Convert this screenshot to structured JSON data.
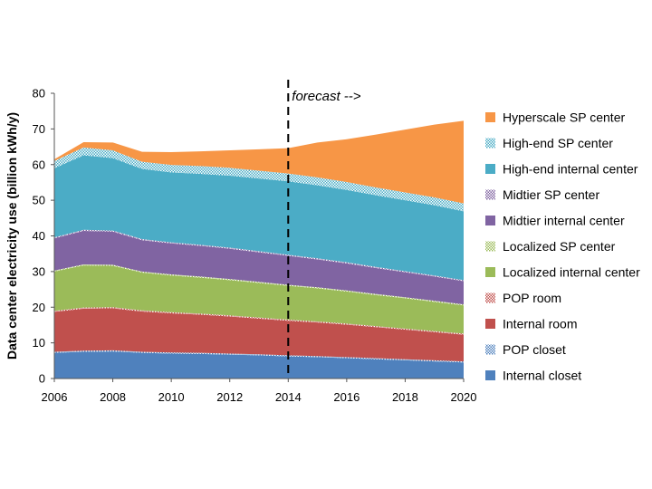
{
  "chart_data": {
    "type": "area",
    "stacked": true,
    "title": "",
    "xlabel": "",
    "ylabel": "Data center electricity use (billion kWh/y)",
    "xlim": [
      2006,
      2020
    ],
    "ylim": [
      0,
      80
    ],
    "xticks": [
      "2006",
      "2008",
      "2010",
      "2012",
      "2014",
      "2016",
      "2018",
      "2020"
    ],
    "yticks": [
      "0",
      "10",
      "20",
      "30",
      "40",
      "50",
      "60",
      "70",
      "80"
    ],
    "grid": false,
    "legend_position": "right",
    "annotation": {
      "text": "forecast -->",
      "x": 2014,
      "style": "dashed-vertical-line"
    },
    "x": [
      2006,
      2007,
      2008,
      2009,
      2010,
      2011,
      2012,
      2013,
      2014,
      2015,
      2016,
      2017,
      2018,
      2019,
      2020
    ],
    "series": [
      {
        "name": "Internal closet",
        "color": "#4F81BD",
        "pattern": "solid",
        "values": [
          7.2,
          7.5,
          7.6,
          7.2,
          7.0,
          6.9,
          6.7,
          6.5,
          6.2,
          6.0,
          5.7,
          5.4,
          5.1,
          4.8,
          4.5
        ]
      },
      {
        "name": "POP closet",
        "color": "#4F81BD",
        "pattern": "dotted",
        "values": [
          0.3,
          0.3,
          0.3,
          0.3,
          0.3,
          0.3,
          0.3,
          0.3,
          0.3,
          0.3,
          0.3,
          0.3,
          0.3,
          0.3,
          0.3
        ]
      },
      {
        "name": "Internal room",
        "color": "#C0504D",
        "pattern": "solid",
        "values": [
          11.2,
          11.8,
          11.8,
          11.3,
          11.0,
          10.7,
          10.4,
          10.0,
          9.7,
          9.4,
          9.1,
          8.7,
          8.3,
          7.9,
          7.5
        ]
      },
      {
        "name": "POP  room",
        "color": "#C0504D",
        "pattern": "dotted",
        "values": [
          0.3,
          0.3,
          0.3,
          0.3,
          0.3,
          0.3,
          0.3,
          0.3,
          0.3,
          0.3,
          0.3,
          0.3,
          0.3,
          0.3,
          0.3
        ]
      },
      {
        "name": "Localized internal center",
        "color": "#9BBB59",
        "pattern": "solid",
        "values": [
          11.0,
          11.8,
          11.6,
          10.6,
          10.3,
          10.1,
          9.9,
          9.7,
          9.5,
          9.3,
          9.0,
          8.7,
          8.5,
          8.2,
          7.9
        ]
      },
      {
        "name": "Localized SP center",
        "color": "#9BBB59",
        "pattern": "dotted",
        "values": [
          0.3,
          0.3,
          0.3,
          0.3,
          0.3,
          0.3,
          0.3,
          0.3,
          0.3,
          0.3,
          0.3,
          0.3,
          0.3,
          0.3,
          0.3
        ]
      },
      {
        "name": "Midtier internal center",
        "color": "#8064A2",
        "pattern": "solid",
        "values": [
          9.0,
          9.4,
          9.3,
          8.8,
          8.7,
          8.6,
          8.5,
          8.3,
          8.1,
          7.8,
          7.6,
          7.3,
          7.0,
          6.8,
          6.5
        ]
      },
      {
        "name": "Midtier SP center",
        "color": "#8064A2",
        "pattern": "dotted",
        "values": [
          0.3,
          0.3,
          0.3,
          0.3,
          0.3,
          0.3,
          0.3,
          0.3,
          0.3,
          0.3,
          0.3,
          0.3,
          0.3,
          0.3,
          0.3
        ]
      },
      {
        "name": "High-end internal center",
        "color": "#4BACC6",
        "pattern": "solid",
        "values": [
          19.4,
          20.9,
          20.3,
          19.7,
          19.6,
          19.9,
          20.2,
          20.4,
          20.6,
          20.5,
          20.3,
          20.1,
          19.9,
          19.7,
          19.3
        ]
      },
      {
        "name": "High-end SP center",
        "color": "#4BACC6",
        "pattern": "dotted",
        "values": [
          2.0,
          2.2,
          2.2,
          2.0,
          2.1,
          2.2,
          2.2,
          2.2,
          2.2,
          2.2,
          2.2,
          2.2,
          2.2,
          2.2,
          2.2
        ]
      },
      {
        "name": "Hyperscale SP center",
        "color": "#F79646",
        "pattern": "solid",
        "values": [
          0.5,
          1.5,
          2.2,
          2.8,
          3.6,
          4.1,
          4.9,
          6.0,
          7.1,
          9.8,
          12.0,
          14.8,
          17.6,
          20.4,
          23.2
        ]
      }
    ]
  }
}
